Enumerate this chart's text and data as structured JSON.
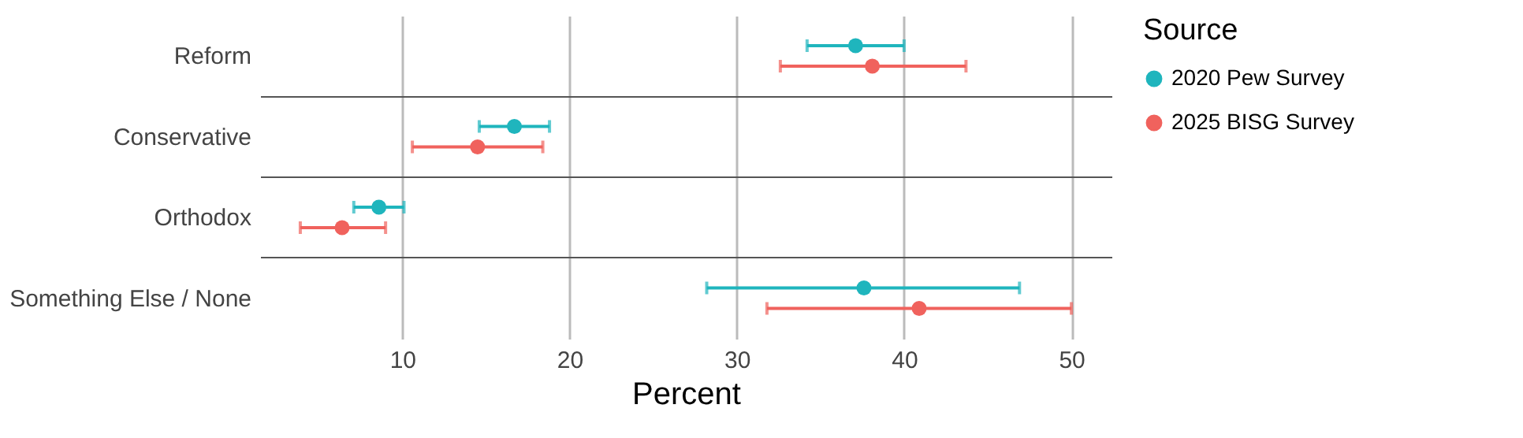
{
  "chart_data": {
    "type": "scatter",
    "orientation": "horizontal",
    "categories": [
      "Reform",
      "Conservative",
      "Orthodox",
      "Something Else / None"
    ],
    "xlabel": "Percent",
    "legend_title": "Source",
    "legend": "right",
    "grid": true,
    "marker": "circle",
    "xlim": [
      1.5,
      52.4
    ],
    "xticks": [
      10,
      20,
      30,
      40,
      50
    ],
    "series": [
      {
        "name": "2020 Pew Survey",
        "color": "#1fb5bd",
        "values": [
          37.1,
          16.7,
          8.6,
          37.6
        ],
        "errors": [
          [
            34.2,
            40.0
          ],
          [
            14.6,
            18.8
          ],
          [
            7.1,
            10.1
          ],
          [
            28.2,
            46.9
          ]
        ]
      },
      {
        "name": "2025 BISG Survey",
        "color": "#f0625d",
        "values": [
          38.1,
          14.5,
          6.4,
          40.9
        ],
        "errors": [
          [
            32.6,
            43.7
          ],
          [
            10.6,
            18.4
          ],
          [
            3.9,
            9.0
          ],
          [
            31.8,
            50.0
          ]
        ]
      }
    ]
  }
}
